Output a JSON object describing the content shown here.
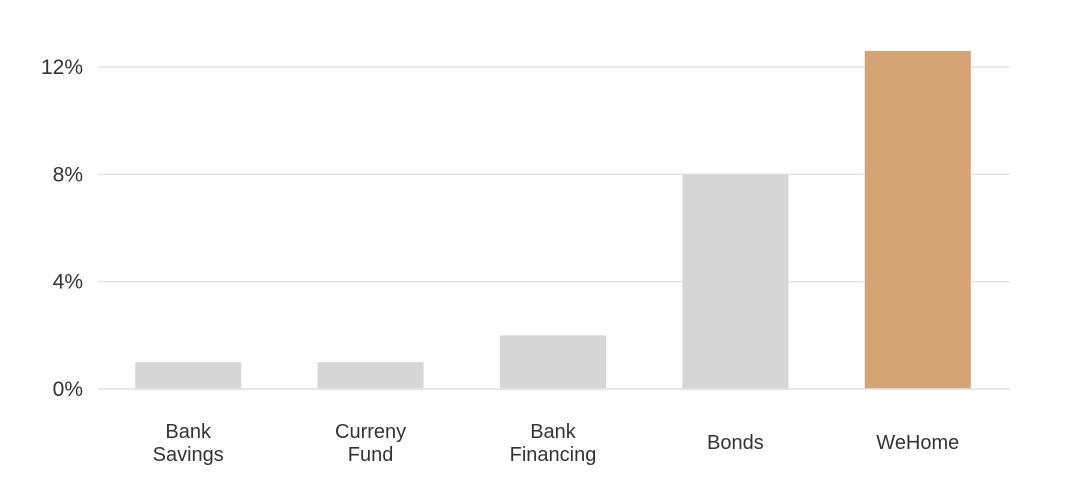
{
  "chart_data": {
    "type": "bar",
    "title": "",
    "xlabel": "",
    "ylabel": "",
    "categories": [
      [
        "Bank",
        "Savings"
      ],
      [
        "Curreny",
        "Fund"
      ],
      [
        "Bank",
        "Financing"
      ],
      [
        "Bonds"
      ],
      [
        "WeHome"
      ]
    ],
    "values": [
      1.0,
      1.0,
      2.0,
      8.0,
      12.6
    ],
    "ylim": [
      0,
      13
    ],
    "yticks": [
      {
        "value": 0,
        "label": "0%"
      },
      {
        "value": 4,
        "label": "4%"
      },
      {
        "value": 8,
        "label": "8%"
      },
      {
        "value": 12,
        "label": "12%"
      }
    ],
    "grid": true,
    "legend": "none",
    "colors": {
      "default_bar": "#d6d6d6",
      "highlight_bar": "#d4a474",
      "highlight_index": 4,
      "gridline": "#e3e3e3",
      "text": "#333333"
    }
  }
}
